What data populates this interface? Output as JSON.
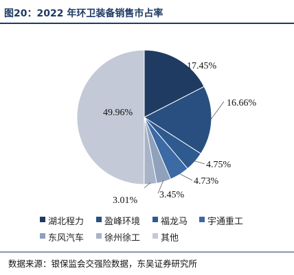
{
  "header": {
    "title": "图20：2022 年环卫装备销售市占率"
  },
  "chart_data": {
    "type": "pie",
    "title": "图20：2022 年环卫装备销售市占率",
    "categories": [
      "湖北程力",
      "盈峰环境",
      "福龙马",
      "宇通重工",
      "东风汽车",
      "徐州徐工",
      "其他"
    ],
    "values": [
      17.45,
      16.66,
      4.75,
      4.73,
      3.45,
      3.01,
      49.96
    ],
    "labels": [
      "17.45%",
      "16.66%",
      "4.75%",
      "4.73%",
      "3.45%",
      "3.01%",
      "49.96%"
    ],
    "colors": [
      "#1f3b61",
      "#284f80",
      "#2f5a8f",
      "#3b6aa5",
      "#8fa1bb",
      "#a7b3c7",
      "#c3c9d6"
    ],
    "legend_position": "bottom"
  },
  "footer": {
    "source": "数据来源：银保监会交强险数据，东吴证券研究所"
  }
}
